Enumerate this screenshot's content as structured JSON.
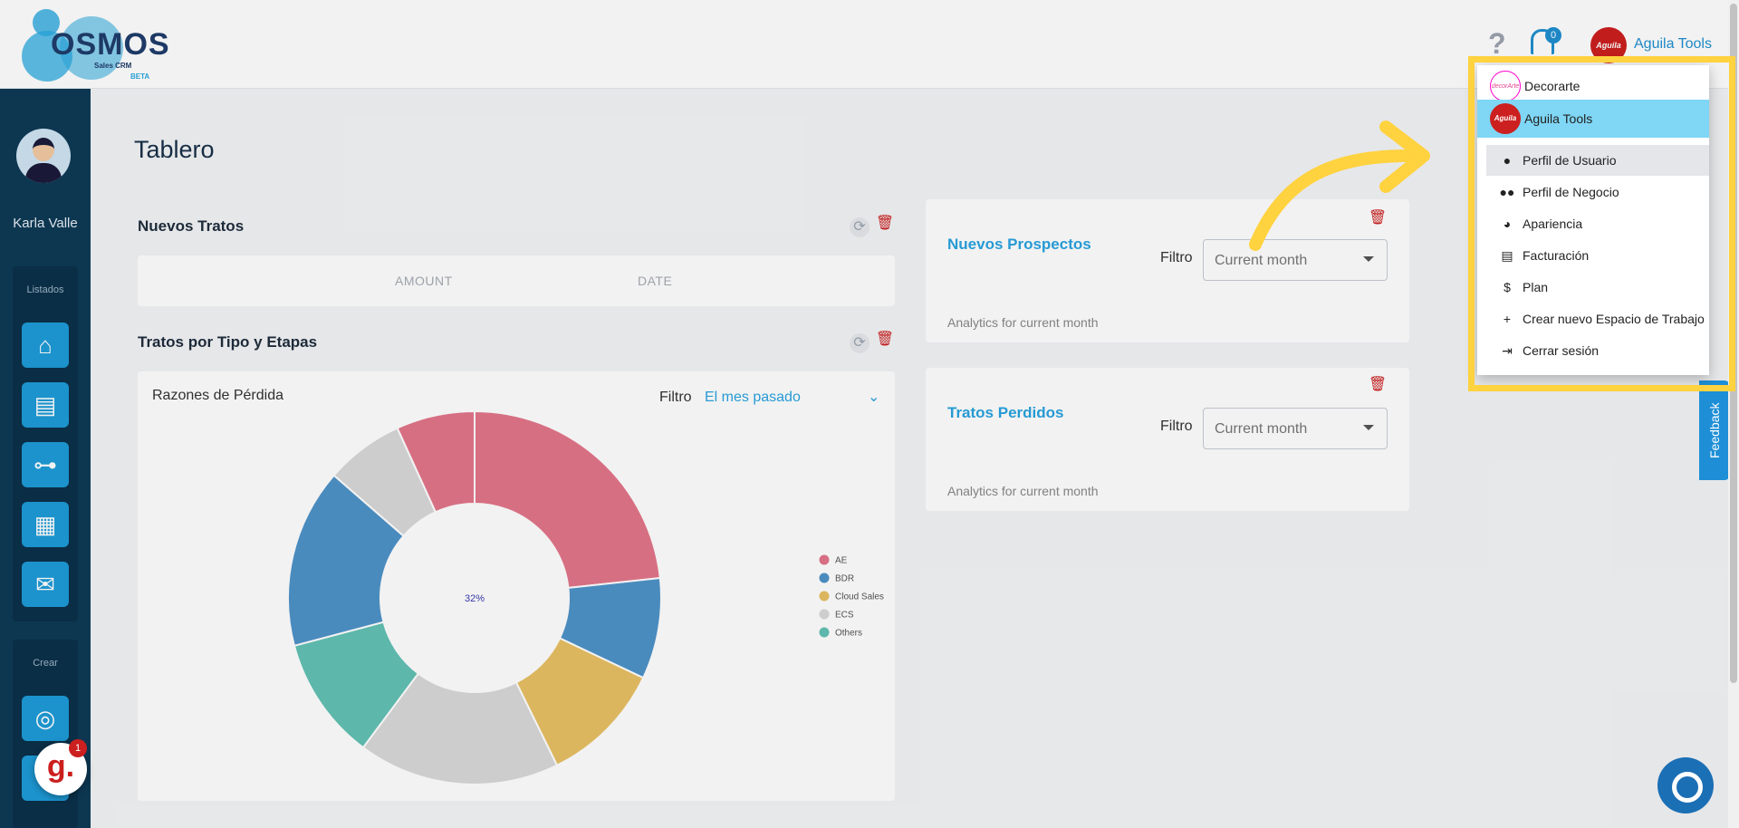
{
  "header": {
    "logo_text": "OSMOS",
    "logo_sub": "Sales CRM",
    "logo_beta": "BETA",
    "help_symbol": "?",
    "notifications_count": "0",
    "user_avatar_text": "Aguila",
    "user_name": "Aguila Tools"
  },
  "sidebar": {
    "user_name": "Karla Valle",
    "listados_label": "Listados",
    "crear_label": "Crear",
    "listados_items": [
      {
        "icon": "home-icon",
        "glyph": "⌂"
      },
      {
        "icon": "contacts-icon",
        "glyph": "▤"
      },
      {
        "icon": "org-chart-icon",
        "glyph": "⊶"
      },
      {
        "icon": "dashboard-icon",
        "glyph": "▦"
      },
      {
        "icon": "mail-icon",
        "glyph": "✉"
      }
    ],
    "crear_items": [
      {
        "icon": "target-icon",
        "glyph": "◎"
      },
      {
        "icon": "task-icon",
        "glyph": "✔"
      }
    ]
  },
  "main": {
    "page_title": "Tablero",
    "nuevos_tratos": {
      "title": "Nuevos Tratos",
      "col_amount": "AMOUNT",
      "col_date": "DATE"
    },
    "tratos_tipo": {
      "title": "Tratos por Tipo y Etapas",
      "chart_title": "Razones de Pérdida",
      "filtro_label": "Filtro",
      "filtro_value": "El mes pasado",
      "center_label": "32%"
    },
    "nuevos_prospectos": {
      "title": "Nuevos Prospectos",
      "filtro_label": "Filtro",
      "select_value": "Current month",
      "analytics_text": "Analytics for current month"
    },
    "tratos_perdidos": {
      "title": "Tratos Perdidos",
      "filtro_label": "Filtro",
      "select_value": "Current month",
      "analytics_text": "Analytics for current month"
    }
  },
  "dropdown": {
    "workspaces": [
      {
        "name": "Decorarte",
        "logo_text": "decorArte"
      },
      {
        "name": "Aguila Tools",
        "logo_text": "Aguila"
      }
    ],
    "menu": [
      {
        "label": "Perfil de Usuario",
        "icon": "user-icon",
        "glyph": "👤"
      },
      {
        "label": "Perfil de Negocio",
        "icon": "users-icon",
        "glyph": "👥"
      },
      {
        "label": "Apariencia",
        "icon": "palette-icon",
        "glyph": "🎨"
      },
      {
        "label": "Facturación",
        "icon": "invoice-icon",
        "glyph": "▤"
      },
      {
        "label": "Plan",
        "icon": "dollar-icon",
        "glyph": "$"
      },
      {
        "label": "Crear nuevo Espacio de Trabajo",
        "icon": "plus-icon",
        "glyph": "+"
      },
      {
        "label": "Cerrar sesión",
        "icon": "logout-icon",
        "glyph": "⇥"
      }
    ]
  },
  "feedback_label": "Feedback",
  "gist_badge": "1",
  "gist_letter": "g.",
  "chart_data": {
    "type": "pie",
    "title": "Razones de Pérdida",
    "center_label": "32%",
    "legend": [
      "AE",
      "BDR",
      "Cloud Sales",
      "ECS",
      "Others"
    ],
    "colors": {
      "AE": "#e3758a",
      "BDR": "#4f93c9",
      "Cloud Sales": "#e8c064",
      "ECS": "#d9d9d9",
      "Others": "#63c1b5"
    },
    "slices": [
      {
        "label": "AE",
        "value": 24
      },
      {
        "label": "BDR",
        "value": 9
      },
      {
        "label": "Cloud Sales",
        "value": 11
      },
      {
        "label": "ECS",
        "value": 18
      },
      {
        "label": "Others",
        "value": 11
      },
      {
        "label": "BDR",
        "value": 16
      },
      {
        "label": "ECS",
        "value": 7
      },
      {
        "label": "AE",
        "value": 7
      }
    ]
  }
}
